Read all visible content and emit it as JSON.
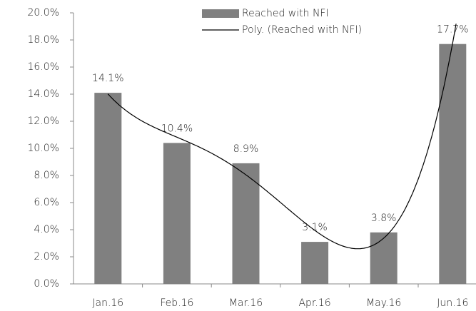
{
  "chart_data": {
    "type": "bar",
    "categories": [
      "Jan.16",
      "Feb.16",
      "Mar.16",
      "Apr.16",
      "May.16",
      "Jun.16"
    ],
    "series": [
      {
        "name": "Reached with NFI",
        "color": "#808080",
        "values": [
          14.1,
          10.4,
          8.9,
          3.1,
          3.8,
          17.7
        ],
        "value_labels": [
          "14.1%",
          "10.4%",
          "8.9%",
          "3.1%",
          "3.8%",
          "17.7%"
        ]
      }
    ],
    "trendline": {
      "name": "Poly. (Reached with NFI)",
      "type": "polynomial",
      "order": 4,
      "color": "#000000"
    },
    "ylim": [
      0,
      20
    ],
    "yticks": [
      {
        "value": 0,
        "label": "0.0%"
      },
      {
        "value": 2,
        "label": "2.0%"
      },
      {
        "value": 4,
        "label": "4.0%"
      },
      {
        "value": 6,
        "label": "6.0%"
      },
      {
        "value": 8,
        "label": "8.0%"
      },
      {
        "value": 10,
        "label": "10.0%"
      },
      {
        "value": 12,
        "label": "12.0%"
      },
      {
        "value": 14,
        "label": "14.0%"
      },
      {
        "value": 16,
        "label": "16.0%"
      },
      {
        "value": 18,
        "label": "18.0%"
      },
      {
        "value": 20,
        "label": "20.0%"
      }
    ],
    "grid": false,
    "legend": "top"
  }
}
